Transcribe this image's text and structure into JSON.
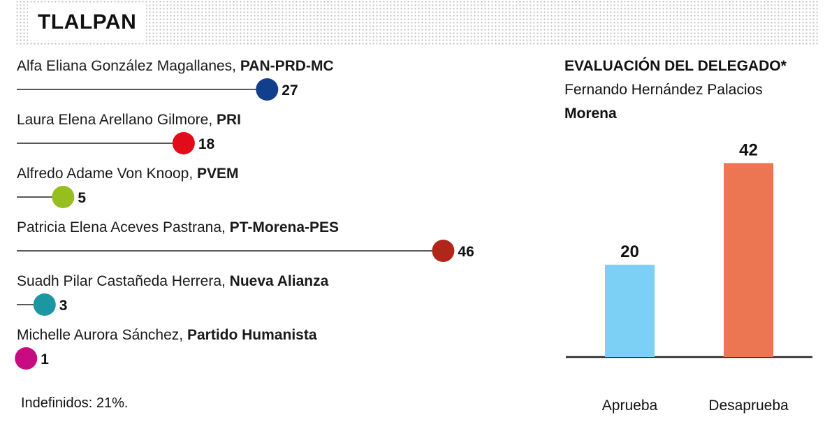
{
  "header": {
    "title": "TLALPAN"
  },
  "chart_data": [
    {
      "type": "lollipop",
      "categories": [
        "Alfa Eliana González Magallanes, PAN-PRD-MC",
        "Laura Elena Arellano Gilmore, PRI",
        "Alfredo Adame Von Knoop, PVEM",
        "Patricia Elena Aceves Pastrana, PT-Morena-PES",
        "Suadh Pilar Castañeda Herrera, Nueva Alianza",
        "Michelle Aurora Sánchez, Partido Humanista"
      ],
      "candidates": [
        {
          "name": "Alfa Eliana González Magallanes, ",
          "party": "PAN-PRD-MC",
          "value": 27,
          "color": "#123f8c"
        },
        {
          "name": "Laura Elena Arellano Gilmore, ",
          "party": "PRI",
          "value": 18,
          "color": "#e20b1a"
        },
        {
          "name": "Alfredo Adame Von Knoop, ",
          "party": "PVEM",
          "value": 5,
          "color": "#96be1f"
        },
        {
          "name": "Patricia Elena Aceves Pastrana, ",
          "party": "PT-Morena-PES",
          "value": 46,
          "color": "#b0261a"
        },
        {
          "name": "Suadh Pilar Castañeda Herrera, ",
          "party": "Nueva Alianza",
          "value": 3,
          "color": "#1b97a1"
        },
        {
          "name": "Michelle Aurora Sánchez, ",
          "party": "Partido Humanista",
          "value": 1,
          "color": "#c90b82"
        }
      ],
      "values": [
        27,
        18,
        5,
        46,
        3,
        1
      ]
    },
    {
      "type": "bar",
      "title": "EVALUACIÓN DEL DELEGADO*",
      "subtitle": [
        "Fernando Hernández Palacios",
        "Morena"
      ],
      "categories": [
        "Aprueba",
        "Desaprueba"
      ],
      "values": [
        20,
        42
      ],
      "colors": [
        "#7ccff5",
        "#ec7651"
      ],
      "ylim": [
        0,
        46
      ],
      "grid": false
    }
  ],
  "footnote": "Indefinidos: 21%."
}
